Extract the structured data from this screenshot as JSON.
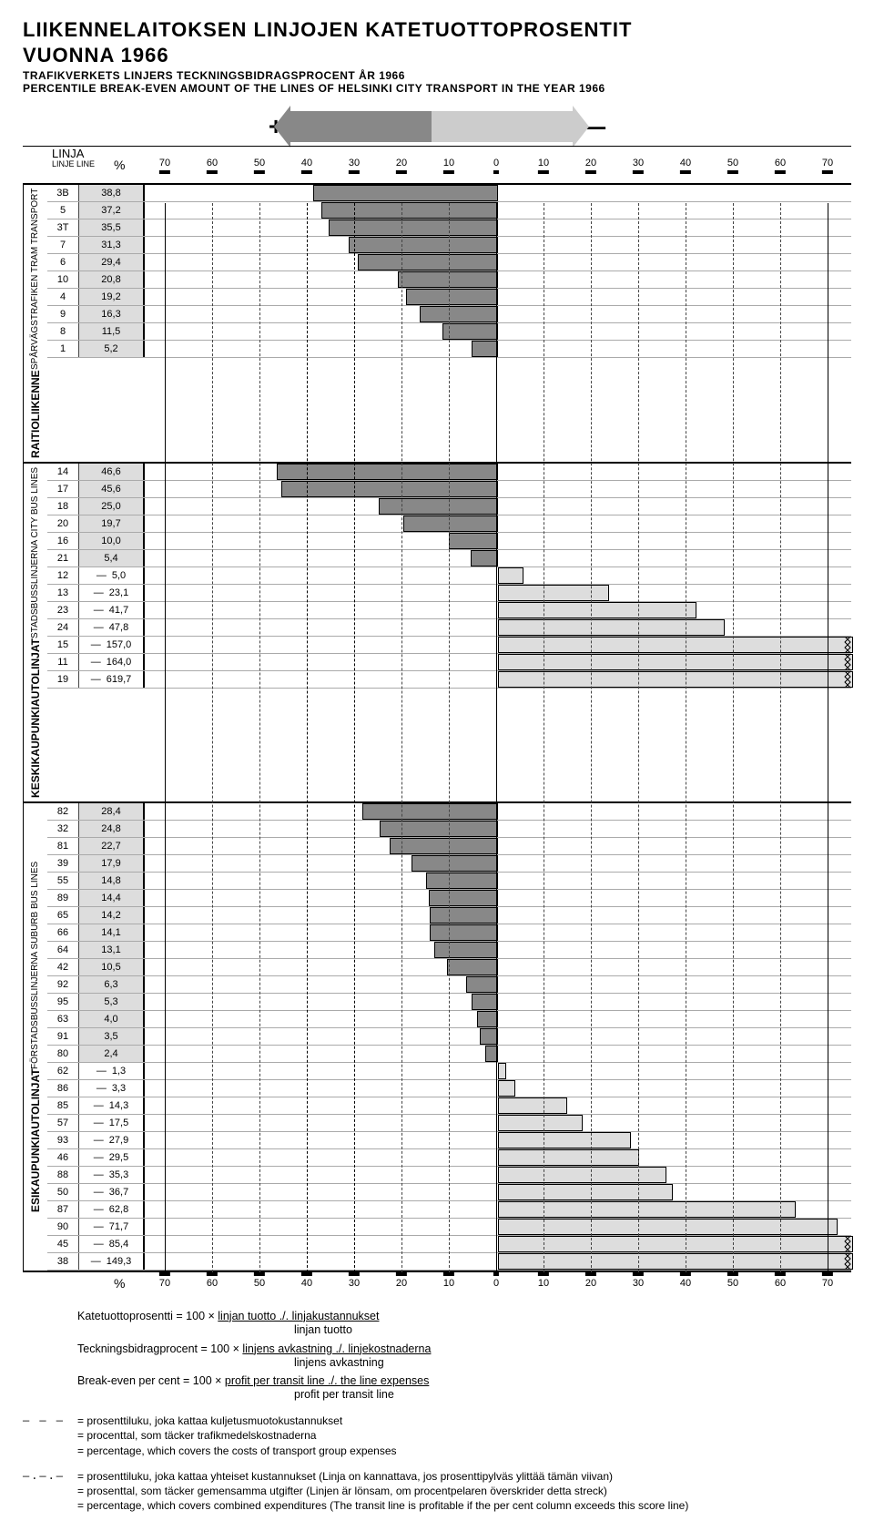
{
  "title_line1": "LIIKENNELAITOKSEN LINJOJEN KATETUOTTOPROSENTIT",
  "title_line2": "VUONNA 1966",
  "subtitle_sv": "TRAFIKVERKETS LINJERS TECKNINGSBIDRAGSPROCENT ÅR 1966",
  "subtitle_en": "PERCENTILE BREAK-EVEN AMOUNT OF THE LINES OF HELSINKI CITY TRANSPORT IN THE YEAR 1966",
  "axis": {
    "ticks_left": [
      70,
      60,
      50,
      40,
      30,
      20,
      10
    ],
    "center": 0,
    "ticks_right": [
      10,
      20,
      30,
      40,
      50,
      60,
      70
    ],
    "range": 75
  },
  "linja_head": {
    "title": "LINJA",
    "sub": "LINJE\nLINE",
    "pct": "%"
  },
  "sections": [
    {
      "vlabel_main": "RAITIOLIIKENNE",
      "vlabel_sub": "SPÅRVÄGSTRAFIKEN  TRAM TRANSPORT",
      "rows": [
        {
          "line": "3B",
          "pct": 38.8
        },
        {
          "line": "5",
          "pct": 37.2
        },
        {
          "line": "3T",
          "pct": 35.5
        },
        {
          "line": "7",
          "pct": 31.3
        },
        {
          "line": "6",
          "pct": 29.4
        },
        {
          "line": "10",
          "pct": 20.8
        },
        {
          "line": "4",
          "pct": 19.2
        },
        {
          "line": "9",
          "pct": 16.3
        },
        {
          "line": "8",
          "pct": 11.5
        },
        {
          "line": "1",
          "pct": 5.2
        }
      ]
    },
    {
      "vlabel_main": "KESKIKAUPUNKIAUTOLINJAT",
      "vlabel_sub": "STADSBUSSLINJERNA  CITY BUS LINES",
      "rows": [
        {
          "line": "14",
          "pct": 46.6
        },
        {
          "line": "17",
          "pct": 45.6
        },
        {
          "line": "18",
          "pct": 25.0
        },
        {
          "line": "20",
          "pct": 19.7
        },
        {
          "line": "16",
          "pct": 10.0
        },
        {
          "line": "21",
          "pct": 5.4
        },
        {
          "line": "12",
          "pct": -5.0
        },
        {
          "line": "13",
          "pct": -23.1
        },
        {
          "line": "23",
          "pct": -41.7
        },
        {
          "line": "24",
          "pct": -47.8
        },
        {
          "line": "15",
          "pct": -157.0,
          "overflow": true
        },
        {
          "line": "11",
          "pct": -164.0,
          "overflow": true
        },
        {
          "line": "19",
          "pct": -619.7,
          "overflow": true
        }
      ]
    },
    {
      "vlabel_main": "ESIKAUPUNKIAUTOLINJAT",
      "vlabel_sub": "FÖRSTADSBUSSLINJERNA  SUBURB BUS LINES",
      "rows": [
        {
          "line": "82",
          "pct": 28.4
        },
        {
          "line": "32",
          "pct": 24.8
        },
        {
          "line": "81",
          "pct": 22.7
        },
        {
          "line": "39",
          "pct": 17.9
        },
        {
          "line": "55",
          "pct": 14.8
        },
        {
          "line": "89",
          "pct": 14.4
        },
        {
          "line": "65",
          "pct": 14.2
        },
        {
          "line": "66",
          "pct": 14.1
        },
        {
          "line": "64",
          "pct": 13.1
        },
        {
          "line": "42",
          "pct": 10.5
        },
        {
          "line": "92",
          "pct": 6.3
        },
        {
          "line": "95",
          "pct": 5.3
        },
        {
          "line": "63",
          "pct": 4.0
        },
        {
          "line": "91",
          "pct": 3.5
        },
        {
          "line": "80",
          "pct": 2.4
        },
        {
          "line": "62",
          "pct": -1.3
        },
        {
          "line": "86",
          "pct": -3.3
        },
        {
          "line": "85",
          "pct": -14.3
        },
        {
          "line": "57",
          "pct": -17.5
        },
        {
          "line": "93",
          "pct": -27.9
        },
        {
          "line": "46",
          "pct": -29.5
        },
        {
          "line": "88",
          "pct": -35.3
        },
        {
          "line": "50",
          "pct": -36.7
        },
        {
          "line": "87",
          "pct": -62.8
        },
        {
          "line": "90",
          "pct": -71.7
        },
        {
          "line": "45",
          "pct": -85.4,
          "overflow": true
        },
        {
          "line": "38",
          "pct": -149.3,
          "overflow": true
        }
      ]
    }
  ],
  "colors": {
    "pos_bar": "#888888",
    "neg_bar": "#dddddd",
    "pct_cell_pos_bg": "#dddddd",
    "grid_dashed": "#444444"
  },
  "formulas": {
    "f1_a": "Katetuottoprosentti  =  100  ×  ",
    "f1_num": "linjan tuotto ./. linjakustannukset",
    "f1_den": "linjan tuotto",
    "f2_a": "Teckningsbidragprocent  =  100  ×  ",
    "f2_num": "linjens avkastning ./. linjekostnaderna",
    "f2_den": "linjens avkastning",
    "f3_a": "Break-even per cent  =  100  ×  ",
    "f3_num": "profit per transit line ./. the line expenses",
    "f3_den": "profit per transit line"
  },
  "legend1": {
    "dash": "— — —",
    "fi": "= prosenttiluku, joka kattaa kuljetusmuotokustannukset",
    "sv": "= procenttal, som täcker trafikmedelskostnaderna",
    "en": "= percentage, which covers the costs of transport group expenses"
  },
  "legend2": {
    "dash": "—.—.—",
    "fi": "= prosenttiluku, joka kattaa yhteiset kustannukset (Linja on kannattava, jos prosenttipylväs ylittää tämän viivan)",
    "sv": "= prosenttal, som täcker gemensamma utgifter (Linjen är lönsam, om procentpelaren överskrider detta streck)",
    "en": "= percentage, which covers combined expenditures (The transit line is profitable if the per cent column exceeds this score line)"
  }
}
